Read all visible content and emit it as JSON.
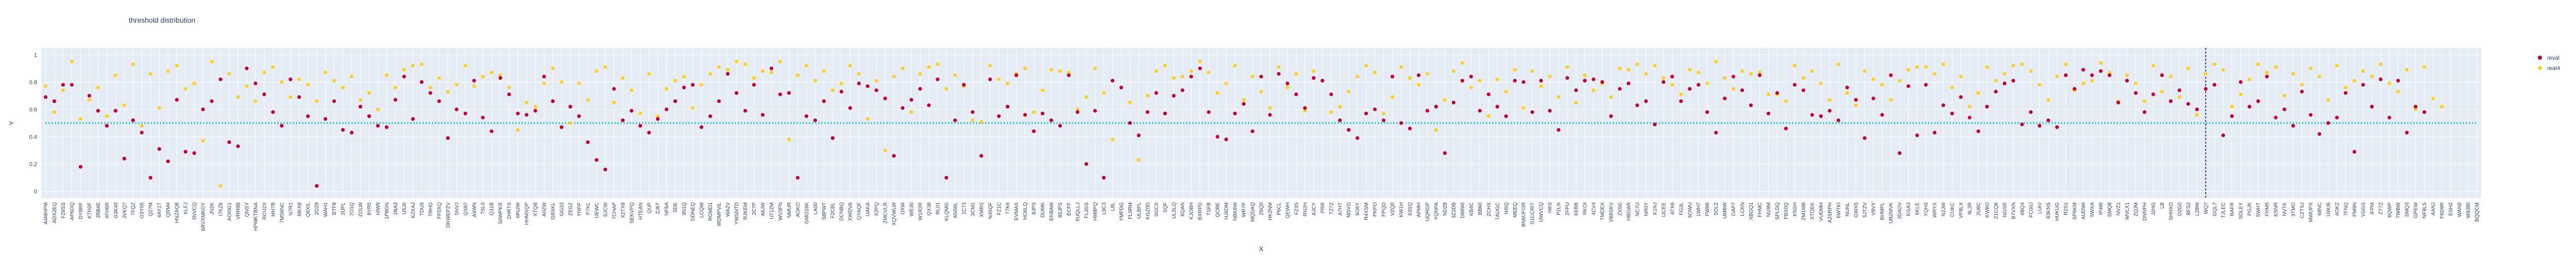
{
  "chart_data": {
    "type": "scatter",
    "title": "threshold distribution",
    "xlabel": "X",
    "ylabel": "Y",
    "ylim": [
      -0.05,
      1.05
    ],
    "yticks": [
      0,
      0.2,
      0.4,
      0.6,
      0.8,
      1
    ],
    "ytick_labels": [
      "0",
      "0.2",
      "0.4",
      "0.6",
      "0.8",
      "1"
    ],
    "grid": true,
    "legend_placement": "top-right",
    "threshold_line": {
      "y": 0.5,
      "color": "#17becf",
      "style": "dotted"
    },
    "marker_line": {
      "x": "WQ7",
      "color": "#000080",
      "style": "dashed"
    },
    "categories": [
      "A4MHPM",
      "ADX2EQ",
      "FZ6SS",
      "AP6OQ",
      "DY8RF",
      "KTH2F",
      "JRB4E",
      "4FH6R",
      "G3K40",
      "JVKQ7",
      "7FQZ",
      "O3Y55",
      "Q27M",
      "4AY1T",
      "QRM4",
      "HNZAQ8",
      "KLFJ",
      "3NVCQ",
      "6RVXMKOY",
      "JN2K",
      "I7KZ6",
      "AOI0G1",
      "VRR8B",
      "QNSY",
      "HPMKTBNA",
      "RCU2X",
      "MH7B",
      "7MS6NC",
      "N7R1",
      "MKX8",
      "Q6XIL",
      "2OZ9",
      "WAH1",
      "BTF8",
      "2UPL",
      "7O1Q",
      "ZOLW",
      "8YR5",
      "HIW9",
      "1P8GN",
      "2BA3",
      "U5J0",
      "K2XAJ",
      "TDU3",
      "TRHD",
      "FF5XQ",
      "DKWEPZV",
      "5NVJ",
      "QX87",
      "A4WN",
      "7SL0",
      "Q31B",
      "S0WPKR",
      "2HRTS",
      "MN2W",
      "HHMXQP",
      "XTQB",
      "A0ZW",
      "GBXKL",
      "GG33",
      "ZEG2",
      "YNPP",
      "P7KL",
      "UEWC",
      "SJCW",
      "7CHAP",
      "X2TX8",
      "SEKVPQ",
      "HTEAN",
      "QUP",
      "ZJ6T",
      "NF6A",
      "5DE",
      "3N1Q",
      "DDNEQ",
      "LCQW",
      "RGMD1",
      "WDMPVIL",
      "WA2V",
      "YWSNTD",
      "RJKEM",
      "2C7P",
      "A6JW",
      "U71ZM",
      "WV3FN",
      "NMUR",
      "AOKO",
      "GMO16K",
      "LA00",
      "58PWT",
      "F2CBL",
      "DCNBQ",
      "XWDVA",
      "QYAQF",
      "UAKA",
      "X2PQ",
      "ZMCVLR",
      "XQVWLW",
      "OXW",
      "WE30",
      "W1R2R",
      "QX38",
      "RL01",
      "KLQMG",
      "AN56L",
      "1C73",
      "3CM1",
      "XMRS",
      "N45QF",
      "FZ1C",
      "77K6",
      "EVMAX",
      "HO6LQ",
      "8JPS",
      "DUMK",
      "EKBAW",
      "85JPS",
      "ECFF",
      "5UQLLJ",
      "FLJGS",
      "HM8PQ",
      "L9C3",
      "L8L",
      "YMPDG",
      "FL0RM",
      "ULBPL",
      "KGZ0D",
      "0GCX",
      "5QF",
      "UL5LQ",
      "6QAN",
      "KJOBH",
      "BXRPD",
      "TSFB",
      "QOBE",
      "HJ6DM",
      "NBK6W",
      "WR7P",
      "MQDAQ",
      "Z6Q0",
      "HK2NM",
      "P6CL",
      "QEWH",
      "FZ3S",
      "RN2H",
      "AJCY",
      "PRR",
      "TZ7Z",
      "A7HT",
      "MSVO",
      "6O6Y",
      "R4XSM",
      "PKPO",
      "FPQD",
      "VZQ0",
      "KW1H",
      "63SQ",
      "APMH",
      "UQRGP",
      "YQNPA",
      "NDZ8",
      "3Z3DB",
      "D66WI",
      "KB4C",
      "BB60",
      "ZCHX",
      "7AUGC",
      "NI5Q",
      "MEEQ",
      "BN6UFOR",
      "S1CCRIT",
      "UWVCQ",
      "IWI3",
      "P2LN",
      "2FPU",
      "XEBB",
      "RKOI",
      "4CV4",
      "TMDEX",
      "VB8SKV",
      "ZX5G",
      "HBOAR",
      "NC7U",
      "NR0Y",
      "K1NJ",
      "IJCEE",
      "ATX6",
      "FG3L",
      "6OWU",
      "LWH7",
      "FW66",
      "5OLZ",
      "UMBW",
      "OAP7",
      "LCKN",
      "XBGQ1",
      "FHMC",
      "NU9M",
      "SPLDQ",
      "FBX0Q",
      "K5GH",
      "ZM1MB",
      "XTOEK",
      "VUDMH",
      "A3SRPH",
      "6WTKI",
      "NUNL",
      "GWX5",
      "5JTZV",
      "V8VY",
      "BHMPL",
      "UB2MVK",
      "3D4OV",
      "KGA3",
      "6KLE",
      "YQH3",
      "WRYX",
      "N2JW",
      "CUKC",
      "VP8LX",
      "9L2R",
      "2U6C",
      "KW8O",
      "Z1CQ6",
      "NGSR",
      "B7VXN",
      "4BQ4",
      "FC00J",
      "LUIV",
      "63KNS",
      "HUKUG",
      "R2S1",
      "SP6KM",
      "AUDWI",
      "5WXA",
      "IP4W",
      "SMQ8",
      "NVZ1",
      "WVLX1",
      "ZQJM",
      "DNNPH",
      "J2HG",
      "LB",
      "SHHXD",
      "O2G0",
      "BFS2",
      "L28W",
      "WQ7",
      "GQL7",
      "TJLEC",
      "BAFR",
      "SDLEY",
      "PGJK",
      "5WHT",
      "FHM5",
      "KSNR",
      "NVTK",
      "3TMO",
      "CZTSJ",
      "MWUPX",
      "68NC",
      "UWJ6",
      "4OKZ",
      "7FNQ",
      "PM9N",
      "YGGS",
      "IFPM",
      "ZT7Z",
      "6QWP",
      "7WBW",
      "SMQ3",
      "GPEW",
      "NF9LS",
      "AANJ",
      "F6D9R",
      "ESH2",
      "WAN0",
      "W9J80",
      "BQQCM"
    ],
    "series": [
      {
        "name": "reval",
        "color": "#c4002f",
        "values": [
          0.69,
          0.66,
          0.78,
          0.78,
          0.18,
          0.7,
          0.59,
          0.48,
          0.59,
          0.24,
          0.52,
          0.43,
          0.1,
          0.31,
          0.22,
          0.67,
          0.29,
          0.28,
          0.6,
          0.66,
          0.82,
          0.36,
          0.33,
          0.9,
          0.79,
          0.71,
          0.58,
          0.48,
          0.82,
          0.69,
          0.55,
          0.04,
          0.53,
          0.66,
          0.45,
          0.43,
          0.62,
          0.55,
          0.48,
          0.47,
          0.67,
          0.84,
          0.53,
          0.8,
          0.72,
          0.66,
          0.39,
          0.6,
          0.57,
          0.81,
          0.54,
          0.44,
          0.83,
          0.71,
          0.57,
          0.56,
          0.59,
          0.84,
          0.66,
          0.47,
          0.62,
          0.55,
          0.36,
          0.23,
          0.16,
          0.75,
          0.52,
          0.59,
          0.48,
          0.43,
          0.53,
          0.6,
          0.66,
          0.76,
          0.78,
          0.47,
          0.55,
          0.66,
          0.86,
          0.72,
          0.59,
          0.78,
          0.56,
          0.9,
          0.71,
          0.72,
          0.1,
          0.55,
          0.52,
          0.66,
          0.39,
          0.73,
          0.61,
          0.79,
          0.77,
          0.74,
          0.68,
          0.26,
          0.61,
          0.67,
          0.75,
          0.63,
          0.82,
          0.1,
          0.52,
          0.78,
          0.58,
          0.26,
          0.82,
          0.55,
          0.62,
          0.85,
          0.56,
          0.44,
          0.57,
          0.52,
          0.48,
          0.85,
          0.58,
          0.2,
          0.59,
          0.1,
          0.81,
          0.76,
          0.5,
          0.41,
          0.58,
          0.72,
          0.57,
          0.7,
          0.74,
          0.84,
          0.9,
          0.58,
          0.4,
          0.38,
          0.57,
          0.64,
          0.44,
          0.84,
          0.56,
          0.86,
          0.79,
          0.71,
          0.61,
          0.83,
          0.81,
          0.71,
          0.52,
          0.45,
          0.39,
          0.57,
          0.6,
          0.52,
          0.84,
          0.5,
          0.46,
          0.85,
          0.59,
          0.62,
          0.28,
          0.65,
          0.81,
          0.84,
          0.59,
          0.71,
          0.62,
          0.55,
          0.81,
          0.8,
          0.58,
          0.81,
          0.59,
          0.45,
          0.83,
          0.74,
          0.81,
          0.82,
          0.8,
          0.55,
          0.75,
          0.79,
          0.63,
          0.66,
          0.49,
          0.8,
          0.84,
          0.66,
          0.75,
          0.78,
          0.58,
          0.43,
          0.68,
          0.84,
          0.74,
          0.63,
          0.85,
          0.57,
          0.72,
          0.46,
          0.78,
          0.74,
          0.56,
          0.55,
          0.59,
          0.52,
          0.76,
          0.67,
          0.39,
          0.68,
          0.56,
          0.85,
          0.28,
          0.77,
          0.41,
          0.78,
          0.43,
          0.63,
          0.57,
          0.69,
          0.54,
          0.44,
          0.62,
          0.73,
          0.79,
          0.81,
          0.49,
          0.58,
          0.48,
          0.52,
          0.47,
          0.85,
          0.75,
          0.89,
          0.85,
          0.88,
          0.85,
          0.65,
          0.81,
          0.72,
          0.58,
          0.71,
          0.85,
          0.66,
          0.74,
          0.64,
          0.6,
          0.75,
          0.78,
          0.41,
          0.55,
          0.8,
          0.62,
          0.66,
          0.84,
          0.54,
          0.6,
          0.48,
          0.73,
          0.56,
          0.42,
          0.5,
          0.54,
          0.72,
          0.29,
          0.78,
          0.62,
          0.82,
          0.54,
          0.81,
          0.43,
          0.62,
          0.58
        ]
      },
      {
        "name": "reat4",
        "color": "#ffd21f",
        "values": [
          0.77,
          0.58,
          0.74,
          0.95,
          0.53,
          0.67,
          0.76,
          0.55,
          0.85,
          0.63,
          0.93,
          0.48,
          0.86,
          0.61,
          0.88,
          0.92,
          0.75,
          0.79,
          0.37,
          0.95,
          0.04,
          0.86,
          0.69,
          0.77,
          0.66,
          0.87,
          0.91,
          0.8,
          0.69,
          0.82,
          0.78,
          0.66,
          0.87,
          0.81,
          0.76,
          0.84,
          0.67,
          0.72,
          0.6,
          0.85,
          0.76,
          0.89,
          0.92,
          0.93,
          0.76,
          0.83,
          0.73,
          0.78,
          0.92,
          0.77,
          0.84,
          0.87,
          0.85,
          0.76,
          0.45,
          0.65,
          0.62,
          0.79,
          0.9,
          0.8,
          0.5,
          0.79,
          0.67,
          0.88,
          0.91,
          0.65,
          0.83,
          0.74,
          0.57,
          0.86,
          0.55,
          0.75,
          0.81,
          0.84,
          0.61,
          0.78,
          0.86,
          0.91,
          0.89,
          0.95,
          0.93,
          0.83,
          0.88,
          0.87,
          0.95,
          0.38,
          0.85,
          0.92,
          0.81,
          0.88,
          0.74,
          0.79,
          0.92,
          0.86,
          0.53,
          0.81,
          0.3,
          0.84,
          0.9,
          0.58,
          0.86,
          0.91,
          0.93,
          0.75,
          0.85,
          0.77,
          0.52,
          0.51,
          0.92,
          0.82,
          0.79,
          0.86,
          0.9,
          0.58,
          0.74,
          0.89,
          0.88,
          0.87,
          0.6,
          0.69,
          0.9,
          0.72,
          0.38,
          0.76,
          0.65,
          0.23,
          0.7,
          0.88,
          0.92,
          0.83,
          0.84,
          0.88,
          0.95,
          0.87,
          0.72,
          0.79,
          0.92,
          0.67,
          0.84,
          0.73,
          0.61,
          0.91,
          0.76,
          0.86,
          0.59,
          0.88,
          0.81,
          0.58,
          0.62,
          0.73,
          0.84,
          0.92,
          0.87,
          0.57,
          0.69,
          0.91,
          0.83,
          0.78,
          0.86,
          0.45,
          0.67,
          0.88,
          0.94,
          0.76,
          0.81,
          0.55,
          0.82,
          0.73,
          0.89,
          0.61,
          0.88,
          0.77,
          0.84,
          0.69,
          0.91,
          0.65,
          0.85,
          0.74,
          0.79,
          0.69,
          0.9,
          0.89,
          0.93,
          0.86,
          0.92,
          0.83,
          0.78,
          0.71,
          0.89,
          0.87,
          0.79,
          0.95,
          0.83,
          0.75,
          0.88,
          0.86,
          0.87,
          0.71,
          0.71,
          0.66,
          0.92,
          0.83,
          0.88,
          0.79,
          0.67,
          0.93,
          0.72,
          0.63,
          0.88,
          0.82,
          0.78,
          0.67,
          0.81,
          0.89,
          0.91,
          0.91,
          0.86,
          0.93,
          0.76,
          0.84,
          0.62,
          0.72,
          0.91,
          0.81,
          0.86,
          0.92,
          0.93,
          0.88,
          0.78,
          0.67,
          0.84,
          0.93,
          0.74,
          0.79,
          0.81,
          0.94,
          0.87,
          0.66,
          0.85,
          0.79,
          0.66,
          0.92,
          0.73,
          0.84,
          0.69,
          0.9,
          0.56,
          0.86,
          0.93,
          0.89,
          0.62,
          0.71,
          0.82,
          0.93,
          0.87,
          0.91,
          0.7,
          0.86,
          0.78,
          0.9,
          0.84,
          0.67,
          0.92,
          0.76,
          0.81,
          0.88,
          0.84,
          0.93,
          0.79,
          0.73,
          0.89,
          0.6,
          0.91,
          0.68,
          0.62
        ]
      }
    ]
  }
}
